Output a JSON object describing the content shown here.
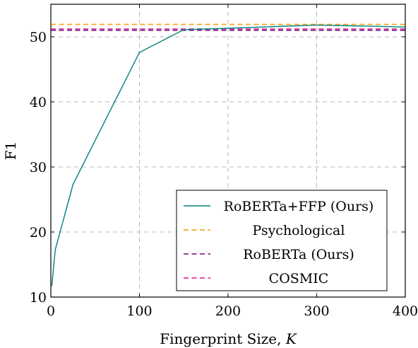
{
  "chart_data": {
    "type": "line",
    "xlabel_prefix": "Fingerprint Size, ",
    "xlabel_var": "K",
    "ylabel": "F1",
    "xlim": [
      0,
      400
    ],
    "ylim": [
      10,
      55
    ],
    "xticks": [
      0,
      100,
      200,
      300,
      400
    ],
    "yticks": [
      10,
      20,
      30,
      40,
      50
    ],
    "grid": true,
    "legend_position": "bottom-right",
    "series": [
      {
        "name": "RoBERTa+FFP (Ours)",
        "style": "solid",
        "color": "#00807f",
        "x": [
          1,
          5,
          25,
          100,
          150,
          200,
          300,
          400
        ],
        "y": [
          11.7,
          17.3,
          27.3,
          47.6,
          51.1,
          51.3,
          51.8,
          51.5
        ]
      },
      {
        "name": "Psychological",
        "style": "dashed",
        "color": "#f5a623",
        "x": [
          0,
          400
        ],
        "y": [
          51.9,
          51.9
        ]
      },
      {
        "name": "RoBERTa (Ours)",
        "style": "dashed",
        "color": "#8b2a8e",
        "x": [
          0,
          400
        ],
        "y": [
          51.0,
          51.0
        ]
      },
      {
        "name": "COSMIC",
        "style": "dashed",
        "color": "#e0339f",
        "x": [
          0,
          400
        ],
        "y": [
          51.2,
          51.2
        ]
      }
    ]
  }
}
